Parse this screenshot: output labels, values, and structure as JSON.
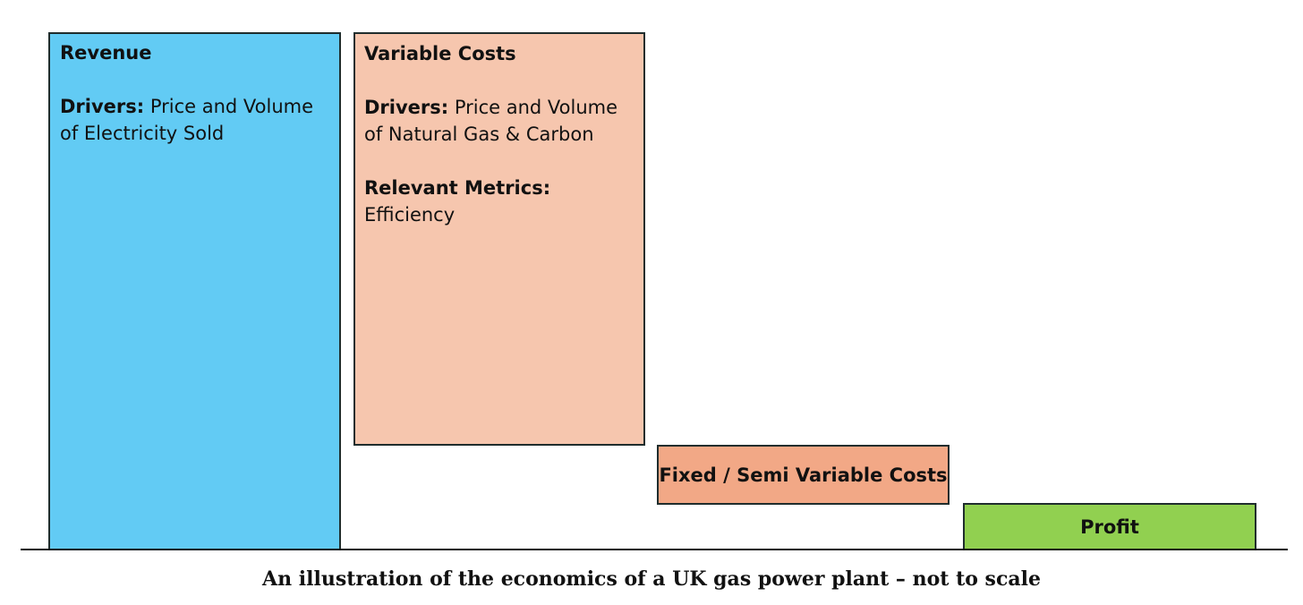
{
  "boxes": {
    "revenue": {
      "title": "Revenue",
      "drivers_label": "Drivers:",
      "drivers_text": " Price and Volume of Electricity Sold",
      "color": "#62cbf4"
    },
    "variable_costs": {
      "title": "Variable Costs",
      "drivers_label": "Drivers:",
      "drivers_text": " Price and Volume of Natural Gas & Carbon",
      "metrics_label": "Relevant Metrics:",
      "metrics_text": "Efficiency",
      "color": "#f6c6ae"
    },
    "fixed_costs": {
      "title": "Fixed / Semi Variable Costs",
      "color": "#f2a886"
    },
    "profit": {
      "title": "Profit",
      "color": "#91d050"
    }
  },
  "caption": "An illustration of the economics of a UK gas power plant – not to scale"
}
